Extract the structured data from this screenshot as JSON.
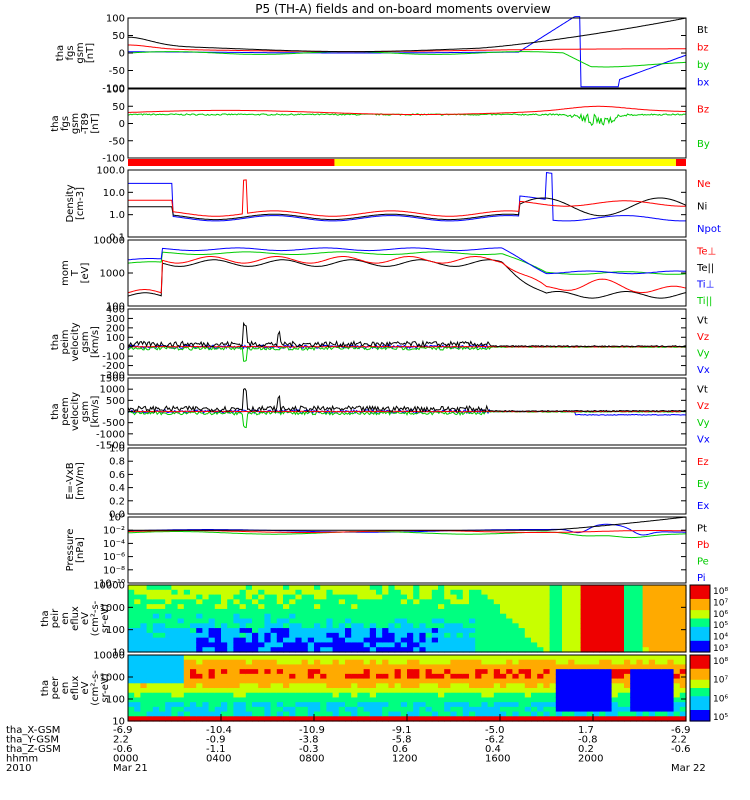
{
  "title": "P5 (TH-A) fields and on-board moments overview",
  "colors": {
    "black": "#000000",
    "red": "#ff0000",
    "green": "#00cc00",
    "blue": "#0000ff",
    "yellow": "#ffff00"
  },
  "chart_data": [
    {
      "type": "line",
      "id": "fgs",
      "ylabel": [
        "tha",
        "fgs",
        "gsm",
        "[nT]"
      ],
      "ylim": [
        -100,
        100
      ],
      "yticks": [
        "100",
        "50",
        "0",
        "-50",
        "-100"
      ],
      "legend": [
        {
          "name": "Bt",
          "color": "#000000"
        },
        {
          "name": "bz",
          "color": "#ff0000"
        },
        {
          "name": "by",
          "color": "#00cc00"
        },
        {
          "name": "bx",
          "color": "#0000ff"
        }
      ]
    },
    {
      "type": "line",
      "id": "fgs_hp",
      "ylabel": [
        "tha",
        "fgs",
        "gsm",
        "-T89",
        "[nT]"
      ],
      "ylim": [
        -100,
        100
      ],
      "yticks": [
        "100",
        "50",
        "0",
        "-50",
        "-100"
      ],
      "legend": [
        {
          "name": "Bz",
          "color": "#ff0000"
        },
        {
          "name": "By",
          "color": "#00cc00"
        }
      ]
    },
    {
      "type": "bar",
      "id": "mode_bar",
      "segments": [
        {
          "from": 0.0,
          "to": 0.37,
          "color": "#ff0000"
        },
        {
          "from": 0.37,
          "to": 0.982,
          "color": "#ffff00"
        },
        {
          "from": 0.982,
          "to": 1.0,
          "color": "#ff0000"
        }
      ]
    },
    {
      "type": "line",
      "id": "density",
      "log": true,
      "ylabel": [
        "Density",
        "[cm-3]"
      ],
      "ylim": [
        0.1,
        100
      ],
      "yticks": [
        "100.0",
        "10.0",
        "1.0",
        "0.1"
      ],
      "legend": [
        {
          "name": "Ne",
          "color": "#ff0000"
        },
        {
          "name": "Ni",
          "color": "#000000"
        },
        {
          "name": "Npot",
          "color": "#0000ff"
        }
      ]
    },
    {
      "type": "line",
      "id": "temp",
      "log": true,
      "ylabel": [
        "mom",
        "T",
        "[eV]"
      ],
      "ylim": [
        100,
        10000
      ],
      "yticks": [
        "10000",
        "1000",
        "100"
      ],
      "legend": [
        {
          "name": "Te⊥",
          "color": "#ff0000"
        },
        {
          "name": "Te||",
          "color": "#000000"
        },
        {
          "name": "Ti⊥",
          "color": "#0000ff"
        },
        {
          "name": "Ti||",
          "color": "#00cc00"
        }
      ]
    },
    {
      "type": "line",
      "id": "peim_vel",
      "ylabel": [
        "tha",
        "peim",
        "velocity",
        "gsm",
        "[km/s]"
      ],
      "ylim": [
        -300,
        400
      ],
      "yticks": [
        "400",
        "300",
        "200",
        "100",
        "0",
        "-100",
        "-200",
        "-300"
      ],
      "legend": [
        {
          "name": "Vt",
          "color": "#000000"
        },
        {
          "name": "Vz",
          "color": "#ff0000"
        },
        {
          "name": "Vy",
          "color": "#00cc00"
        },
        {
          "name": "Vx",
          "color": "#0000ff"
        }
      ]
    },
    {
      "type": "line",
      "id": "peem_vel",
      "ylabel": [
        "tha",
        "peem",
        "velocity",
        "gsm",
        "[km/s]"
      ],
      "ylim": [
        -1500,
        1500
      ],
      "yticks": [
        "1500",
        "1000",
        "500",
        "0",
        "-500",
        "-1000",
        "-1500"
      ],
      "legend": [
        {
          "name": "Vt",
          "color": "#000000"
        },
        {
          "name": "Vz",
          "color": "#ff0000"
        },
        {
          "name": "Vy",
          "color": "#00cc00"
        },
        {
          "name": "Vx",
          "color": "#0000ff"
        }
      ]
    },
    {
      "type": "line",
      "id": "efield",
      "ylabel": [
        "E=-VxB",
        "[mV/m]"
      ],
      "ylim": [
        0,
        1.0
      ],
      "yticks": [
        "1.0",
        "0.8",
        "0.6",
        "0.4",
        "0.2",
        "0.0"
      ],
      "legend": [
        {
          "name": "Ez",
          "color": "#ff0000"
        },
        {
          "name": "Ey",
          "color": "#00cc00"
        },
        {
          "name": "Ex",
          "color": "#0000ff"
        }
      ]
    },
    {
      "type": "line",
      "id": "pressure",
      "log": true,
      "ylabel": [
        "Pressure",
        "[nPa]"
      ],
      "ylim": [
        1e-10,
        1
      ],
      "yticks": [
        "10⁰",
        "10⁻²",
        "10⁻⁴",
        "10⁻⁶",
        "10⁻⁸",
        "10⁻¹⁰"
      ],
      "legend": [
        {
          "name": "Pt",
          "color": "#000000"
        },
        {
          "name": "Pb",
          "color": "#ff0000"
        },
        {
          "name": "Pe",
          "color": "#00cc00"
        },
        {
          "name": "Pi",
          "color": "#0000ff"
        }
      ]
    },
    {
      "type": "heatmap",
      "id": "peir_eflux",
      "ylabel": [
        "tha",
        "peir",
        "en",
        "eflux",
        "eV",
        "(cm²-s-",
        "sr-eV)"
      ],
      "ylim": [
        10,
        10000
      ],
      "yticks": [
        "10000",
        "1000",
        "100",
        "10"
      ],
      "colorbar": [
        "10⁸",
        "10⁷",
        "10⁶",
        "10⁵",
        "10⁴",
        "10³"
      ]
    },
    {
      "type": "heatmap",
      "id": "peer_eflux",
      "ylabel": [
        "tha",
        "peer",
        "en",
        "eflux",
        "eV",
        "(cm²-s-",
        "sr-eV)"
      ],
      "ylim": [
        10,
        10000
      ],
      "yticks": [
        "10000",
        "1000",
        "100",
        "10"
      ],
      "colorbar": [
        "10⁸",
        "10⁷",
        "10⁶",
        "10⁵"
      ]
    }
  ],
  "x_axis": {
    "ticks": [
      "0000",
      "0400",
      "0800",
      "1200",
      "1600",
      "2000",
      ""
    ],
    "dates": [
      {
        "label": "Mar 21",
        "pos": 0
      },
      {
        "label": "Mar 22",
        "pos": 6
      }
    ],
    "rows": [
      {
        "name": "tha_X-GSM",
        "values": [
          "-6.9",
          "-10.4",
          "-10.9",
          "-9.1",
          "-5.0",
          "1.7",
          "-6.9"
        ]
      },
      {
        "name": "tha_Y-GSM",
        "values": [
          "2.2",
          "-0.9",
          "-3.8",
          "-5.8",
          "-6.2",
          "-0.8",
          "2.2"
        ]
      },
      {
        "name": "tha_Z-GSM",
        "values": [
          "-0.6",
          "-1.1",
          "-0.3",
          "0.6",
          "0.4",
          "0.2",
          "-0.6"
        ]
      },
      {
        "name": "hhmm",
        "values": [
          "0000",
          "0400",
          "0800",
          "1200",
          "1600",
          "2000",
          ""
        ]
      },
      {
        "name": "2010",
        "values": [
          "Mar 21",
          "",
          "",
          "",
          "",
          "",
          "Mar 22"
        ]
      }
    ]
  }
}
